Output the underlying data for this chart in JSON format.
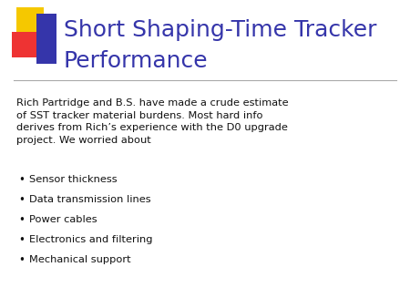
{
  "title_line1": "Short Shaping-Time Tracker",
  "title_line2": "Performance",
  "title_color": "#3535AA",
  "body_text": "Rich Partridge and B.S. have made a crude estimate\nof SST tracker material burdens. Most hard info\nderives from Rich’s experience with the D0 upgrade\nproject. We worried about",
  "bullet_items": [
    "Sensor thickness",
    "Data transmission lines",
    "Power cables",
    "Electronics and filtering",
    "Mechanical support"
  ],
  "background_color": "#ffffff",
  "text_color": "#111111",
  "divider_color": "#aaaaaa",
  "logo_yellow": "#F5C800",
  "logo_red": "#EE3333",
  "logo_blue": "#3535AA",
  "fig_width": 4.5,
  "fig_height": 3.38,
  "dpi": 100
}
